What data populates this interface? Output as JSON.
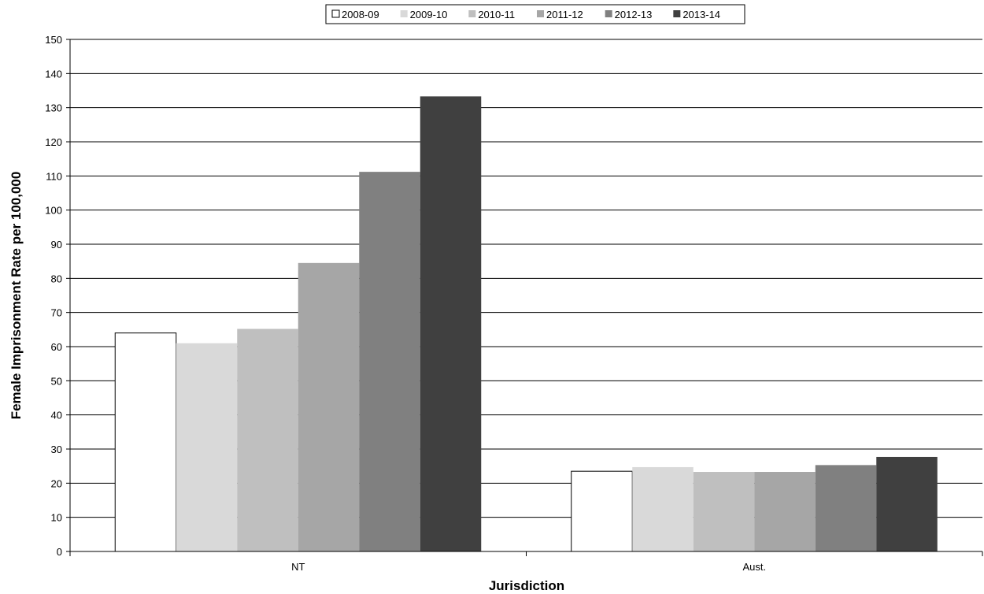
{
  "chart_data": {
    "type": "bar",
    "title": "",
    "xlabel": "Jurisdiction",
    "ylabel": "Female Imprisonment Rate per 100,000",
    "ylim": [
      0,
      150
    ],
    "ytick_step": 10,
    "grid": true,
    "legend_position": "top-center",
    "categories": [
      "NT",
      "Aust."
    ],
    "series": [
      {
        "name": "2008-09",
        "color": "#ffffff",
        "values": [
          64,
          23.5
        ]
      },
      {
        "name": "2009-10",
        "color": "#d9d9d9",
        "values": [
          61,
          24.7
        ]
      },
      {
        "name": "2010-11",
        "color": "#bfbfbf",
        "values": [
          65.2,
          23.3
        ]
      },
      {
        "name": "2011-12",
        "color": "#a6a6a6",
        "values": [
          84.5,
          23.3
        ]
      },
      {
        "name": "2012-13",
        "color": "#808080",
        "values": [
          111.2,
          25.3
        ]
      },
      {
        "name": "2013-14",
        "color": "#404040",
        "values": [
          133.3,
          27.7
        ]
      }
    ]
  }
}
